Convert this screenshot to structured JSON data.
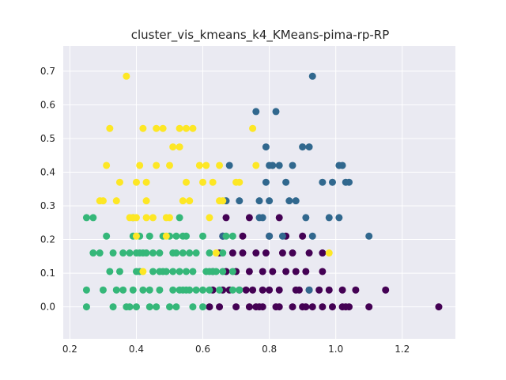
{
  "chart_data": {
    "type": "scatter",
    "title": "cluster_vis_kmeans_k4_KMeans-pima-rp-RP",
    "xlabel": "",
    "ylabel": "",
    "xlim": [
      0.18,
      1.36
    ],
    "ylim": [
      -0.095,
      0.775
    ],
    "x_ticks": [
      0.2,
      0.4,
      0.6,
      0.8,
      1.0,
      1.2
    ],
    "x_tick_labels": [
      "0.2",
      "0.4",
      "0.6",
      "0.8",
      "1.0",
      "1.2"
    ],
    "y_ticks": [
      0.0,
      0.1,
      0.2,
      0.3,
      0.4,
      0.5,
      0.6,
      0.7
    ],
    "y_tick_labels": [
      "0.0",
      "0.1",
      "0.2",
      "0.3",
      "0.4",
      "0.5",
      "0.6",
      "0.7"
    ],
    "grid": true,
    "legend": "none",
    "series": [
      {
        "color": "#440154",
        "points": [
          [
            0.62,
            0.0
          ],
          [
            0.65,
            0.0
          ],
          [
            0.7,
            0.0
          ],
          [
            0.74,
            0.0
          ],
          [
            0.76,
            0.0
          ],
          [
            0.77,
            0.0
          ],
          [
            0.78,
            0.0
          ],
          [
            0.82,
            0.0
          ],
          [
            0.83,
            0.0
          ],
          [
            0.87,
            0.0
          ],
          [
            0.9,
            0.0
          ],
          [
            0.91,
            0.0
          ],
          [
            0.93,
            0.0
          ],
          [
            0.96,
            0.0
          ],
          [
            0.99,
            0.0
          ],
          [
            1.02,
            0.0
          ],
          [
            1.03,
            0.0
          ],
          [
            1.04,
            0.0
          ],
          [
            1.1,
            0.0
          ],
          [
            1.31,
            0.0
          ],
          [
            0.63,
            0.05
          ],
          [
            0.66,
            0.05
          ],
          [
            0.68,
            0.05
          ],
          [
            0.71,
            0.05
          ],
          [
            0.73,
            0.05
          ],
          [
            0.75,
            0.05
          ],
          [
            0.78,
            0.05
          ],
          [
            0.8,
            0.05
          ],
          [
            0.83,
            0.05
          ],
          [
            0.88,
            0.05
          ],
          [
            0.89,
            0.05
          ],
          [
            0.92,
            0.05
          ],
          [
            0.95,
            0.05
          ],
          [
            0.98,
            0.05
          ],
          [
            1.02,
            0.05
          ],
          [
            1.06,
            0.05
          ],
          [
            1.15,
            0.05
          ],
          [
            0.63,
            0.105
          ],
          [
            0.67,
            0.105
          ],
          [
            0.7,
            0.105
          ],
          [
            0.74,
            0.105
          ],
          [
            0.78,
            0.105
          ],
          [
            0.81,
            0.105
          ],
          [
            0.85,
            0.105
          ],
          [
            0.88,
            0.105
          ],
          [
            0.91,
            0.105
          ],
          [
            0.96,
            0.105
          ],
          [
            0.65,
            0.16
          ],
          [
            0.69,
            0.16
          ],
          [
            0.72,
            0.16
          ],
          [
            0.76,
            0.16
          ],
          [
            0.79,
            0.16
          ],
          [
            0.84,
            0.16
          ],
          [
            0.87,
            0.16
          ],
          [
            0.92,
            0.16
          ],
          [
            0.96,
            0.16
          ],
          [
            0.66,
            0.21
          ],
          [
            0.72,
            0.21
          ],
          [
            0.8,
            0.21
          ],
          [
            0.85,
            0.21
          ],
          [
            0.9,
            0.21
          ],
          [
            0.67,
            0.265
          ],
          [
            0.74,
            0.265
          ],
          [
            0.83,
            0.265
          ]
        ]
      },
      {
        "color": "#31688e",
        "points": [
          [
            0.93,
            0.685
          ],
          [
            0.76,
            0.58
          ],
          [
            0.82,
            0.58
          ],
          [
            0.79,
            0.475
          ],
          [
            0.9,
            0.475
          ],
          [
            0.92,
            0.475
          ],
          [
            0.68,
            0.42
          ],
          [
            0.8,
            0.42
          ],
          [
            0.81,
            0.42
          ],
          [
            0.83,
            0.42
          ],
          [
            0.87,
            0.42
          ],
          [
            1.01,
            0.42
          ],
          [
            1.02,
            0.42
          ],
          [
            0.79,
            0.37
          ],
          [
            0.85,
            0.37
          ],
          [
            0.96,
            0.37
          ],
          [
            0.99,
            0.37
          ],
          [
            1.03,
            0.37
          ],
          [
            1.04,
            0.37
          ],
          [
            0.67,
            0.315
          ],
          [
            0.71,
            0.315
          ],
          [
            0.77,
            0.315
          ],
          [
            0.8,
            0.315
          ],
          [
            0.86,
            0.315
          ],
          [
            0.88,
            0.315
          ],
          [
            0.77,
            0.265
          ],
          [
            0.78,
            0.265
          ],
          [
            0.91,
            0.265
          ],
          [
            0.98,
            0.265
          ],
          [
            1.01,
            0.265
          ],
          [
            0.66,
            0.21
          ],
          [
            0.8,
            0.21
          ],
          [
            0.84,
            0.21
          ],
          [
            0.93,
            0.21
          ],
          [
            1.1,
            0.21
          ],
          [
            0.92,
            0.05
          ]
        ]
      },
      {
        "color": "#35b779",
        "points": [
          [
            0.25,
            0.0
          ],
          [
            0.33,
            0.0
          ],
          [
            0.37,
            0.0
          ],
          [
            0.38,
            0.0
          ],
          [
            0.4,
            0.0
          ],
          [
            0.44,
            0.0
          ],
          [
            0.46,
            0.0
          ],
          [
            0.5,
            0.0
          ],
          [
            0.52,
            0.0
          ],
          [
            0.57,
            0.0
          ],
          [
            0.6,
            0.0
          ],
          [
            0.25,
            0.05
          ],
          [
            0.3,
            0.05
          ],
          [
            0.34,
            0.05
          ],
          [
            0.36,
            0.05
          ],
          [
            0.39,
            0.05
          ],
          [
            0.42,
            0.05
          ],
          [
            0.44,
            0.05
          ],
          [
            0.47,
            0.05
          ],
          [
            0.51,
            0.05
          ],
          [
            0.53,
            0.05
          ],
          [
            0.54,
            0.05
          ],
          [
            0.55,
            0.05
          ],
          [
            0.56,
            0.05
          ],
          [
            0.58,
            0.05
          ],
          [
            0.6,
            0.05
          ],
          [
            0.62,
            0.05
          ],
          [
            0.65,
            0.05
          ],
          [
            0.69,
            0.05
          ],
          [
            0.71,
            0.05
          ],
          [
            0.32,
            0.105
          ],
          [
            0.35,
            0.105
          ],
          [
            0.4,
            0.105
          ],
          [
            0.41,
            0.105
          ],
          [
            0.45,
            0.105
          ],
          [
            0.47,
            0.105
          ],
          [
            0.48,
            0.105
          ],
          [
            0.49,
            0.105
          ],
          [
            0.51,
            0.105
          ],
          [
            0.53,
            0.105
          ],
          [
            0.55,
            0.105
          ],
          [
            0.57,
            0.105
          ],
          [
            0.61,
            0.105
          ],
          [
            0.62,
            0.105
          ],
          [
            0.63,
            0.105
          ],
          [
            0.64,
            0.105
          ],
          [
            0.66,
            0.105
          ],
          [
            0.69,
            0.105
          ],
          [
            0.27,
            0.16
          ],
          [
            0.29,
            0.16
          ],
          [
            0.33,
            0.16
          ],
          [
            0.36,
            0.16
          ],
          [
            0.38,
            0.16
          ],
          [
            0.4,
            0.16
          ],
          [
            0.41,
            0.16
          ],
          [
            0.42,
            0.16
          ],
          [
            0.43,
            0.16
          ],
          [
            0.45,
            0.16
          ],
          [
            0.47,
            0.16
          ],
          [
            0.51,
            0.16
          ],
          [
            0.52,
            0.16
          ],
          [
            0.54,
            0.16
          ],
          [
            0.56,
            0.16
          ],
          [
            0.58,
            0.16
          ],
          [
            0.62,
            0.16
          ],
          [
            0.66,
            0.16
          ],
          [
            0.31,
            0.21
          ],
          [
            0.39,
            0.21
          ],
          [
            0.41,
            0.21
          ],
          [
            0.44,
            0.21
          ],
          [
            0.48,
            0.21
          ],
          [
            0.5,
            0.21
          ],
          [
            0.52,
            0.21
          ],
          [
            0.54,
            0.21
          ],
          [
            0.55,
            0.21
          ],
          [
            0.6,
            0.21
          ],
          [
            0.67,
            0.21
          ],
          [
            0.69,
            0.21
          ],
          [
            0.25,
            0.265
          ],
          [
            0.27,
            0.265
          ],
          [
            0.39,
            0.265
          ],
          [
            0.53,
            0.265
          ]
        ]
      },
      {
        "color": "#fde725",
        "points": [
          [
            0.37,
            0.685
          ],
          [
            0.32,
            0.53
          ],
          [
            0.42,
            0.53
          ],
          [
            0.46,
            0.53
          ],
          [
            0.48,
            0.53
          ],
          [
            0.53,
            0.53
          ],
          [
            0.55,
            0.53
          ],
          [
            0.57,
            0.53
          ],
          [
            0.75,
            0.53
          ],
          [
            0.51,
            0.475
          ],
          [
            0.53,
            0.475
          ],
          [
            0.31,
            0.42
          ],
          [
            0.41,
            0.42
          ],
          [
            0.46,
            0.42
          ],
          [
            0.5,
            0.42
          ],
          [
            0.59,
            0.42
          ],
          [
            0.61,
            0.42
          ],
          [
            0.65,
            0.42
          ],
          [
            0.76,
            0.42
          ],
          [
            0.35,
            0.37
          ],
          [
            0.4,
            0.37
          ],
          [
            0.43,
            0.37
          ],
          [
            0.55,
            0.37
          ],
          [
            0.6,
            0.37
          ],
          [
            0.63,
            0.37
          ],
          [
            0.7,
            0.37
          ],
          [
            0.71,
            0.37
          ],
          [
            0.29,
            0.315
          ],
          [
            0.3,
            0.315
          ],
          [
            0.34,
            0.315
          ],
          [
            0.43,
            0.315
          ],
          [
            0.54,
            0.315
          ],
          [
            0.56,
            0.315
          ],
          [
            0.65,
            0.315
          ],
          [
            0.66,
            0.315
          ],
          [
            0.38,
            0.265
          ],
          [
            0.39,
            0.265
          ],
          [
            0.4,
            0.265
          ],
          [
            0.43,
            0.265
          ],
          [
            0.45,
            0.265
          ],
          [
            0.49,
            0.265
          ],
          [
            0.5,
            0.265
          ],
          [
            0.62,
            0.265
          ],
          [
            0.4,
            0.21
          ],
          [
            0.49,
            0.21
          ],
          [
            0.64,
            0.16
          ],
          [
            0.98,
            0.16
          ],
          [
            0.42,
            0.105
          ]
        ]
      }
    ]
  }
}
